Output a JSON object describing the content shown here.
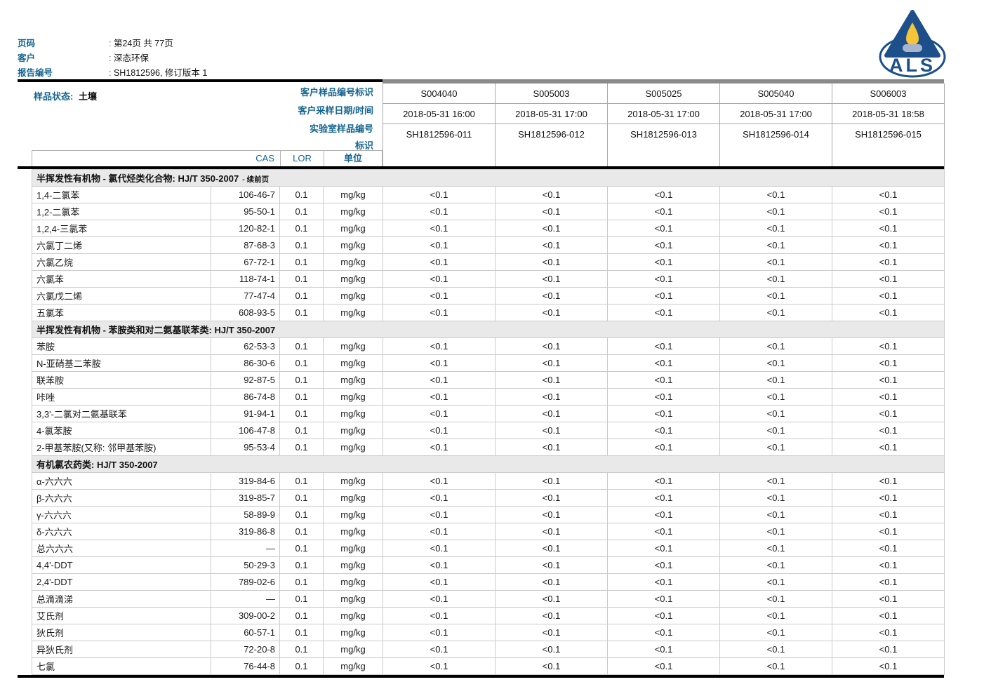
{
  "header": {
    "fields": [
      {
        "label": "页码",
        "value": "第24页 共 77页"
      },
      {
        "label": "客户",
        "value": "深态环保"
      },
      {
        "label": "报告编号",
        "value": "SH1812596, 修订版本 1"
      }
    ],
    "logo": {
      "text": "ALS",
      "triangle_color": "#1d4f8b",
      "flame_color": "#f6c437",
      "base_color": "#a7b4ce"
    }
  },
  "colors": {
    "label_blue": "#14648f",
    "section_bg": "#e9e9e9",
    "grid": "#cbcbcb"
  },
  "sample_info": {
    "status_label": "样品状态:",
    "status_value": "土壤",
    "row_labels": [
      "客户样品编号标识",
      "客户采样日期/时间",
      "实验室样品编号",
      "标识"
    ],
    "samples": [
      {
        "client_id": "S004040",
        "datetime": "2018-05-31 16:00",
        "lab_id": "SH1812596-011"
      },
      {
        "client_id": "S005003",
        "datetime": "2018-05-31 17:00",
        "lab_id": "SH1812596-012"
      },
      {
        "client_id": "S005025",
        "datetime": "2018-05-31 17:00",
        "lab_id": "SH1812596-013"
      },
      {
        "client_id": "S005040",
        "datetime": "2018-05-31 17:00",
        "lab_id": "SH1812596-014"
      },
      {
        "client_id": "S006003",
        "datetime": "2018-05-31 18:58",
        "lab_id": "SH1812596-015"
      }
    ]
  },
  "table": {
    "header": {
      "cas": "CAS",
      "lor": "LOR",
      "unit": "单位"
    },
    "sections": [
      {
        "title": "半挥发性有机物 - 氯代烃类化合物: HJ/T 350-2007",
        "suffix": "- 续前页",
        "rows": [
          {
            "name": "1,4-二氯苯",
            "cas": "106-46-7",
            "lor": "0.1",
            "unit": "mg/kg",
            "values": [
              "<0.1",
              "<0.1",
              "<0.1",
              "<0.1",
              "<0.1"
            ]
          },
          {
            "name": "1,2-二氯苯",
            "cas": "95-50-1",
            "lor": "0.1",
            "unit": "mg/kg",
            "values": [
              "<0.1",
              "<0.1",
              "<0.1",
              "<0.1",
              "<0.1"
            ]
          },
          {
            "name": "1,2,4-三氯苯",
            "cas": "120-82-1",
            "lor": "0.1",
            "unit": "mg/kg",
            "values": [
              "<0.1",
              "<0.1",
              "<0.1",
              "<0.1",
              "<0.1"
            ]
          },
          {
            "name": "六氯丁二烯",
            "cas": "87-68-3",
            "lor": "0.1",
            "unit": "mg/kg",
            "values": [
              "<0.1",
              "<0.1",
              "<0.1",
              "<0.1",
              "<0.1"
            ]
          },
          {
            "name": "六氯乙烷",
            "cas": "67-72-1",
            "lor": "0.1",
            "unit": "mg/kg",
            "values": [
              "<0.1",
              "<0.1",
              "<0.1",
              "<0.1",
              "<0.1"
            ]
          },
          {
            "name": "六氯苯",
            "cas": "118-74-1",
            "lor": "0.1",
            "unit": "mg/kg",
            "values": [
              "<0.1",
              "<0.1",
              "<0.1",
              "<0.1",
              "<0.1"
            ]
          },
          {
            "name": "六氯戊二烯",
            "cas": "77-47-4",
            "lor": "0.1",
            "unit": "mg/kg",
            "values": [
              "<0.1",
              "<0.1",
              "<0.1",
              "<0.1",
              "<0.1"
            ]
          },
          {
            "name": "五氯苯",
            "cas": "608-93-5",
            "lor": "0.1",
            "unit": "mg/kg",
            "values": [
              "<0.1",
              "<0.1",
              "<0.1",
              "<0.1",
              "<0.1"
            ]
          }
        ]
      },
      {
        "title": "半挥发性有机物 - 苯胺类和对二氨基联苯类: HJ/T 350-2007",
        "suffix": "",
        "rows": [
          {
            "name": "苯胺",
            "cas": "62-53-3",
            "lor": "0.1",
            "unit": "mg/kg",
            "values": [
              "<0.1",
              "<0.1",
              "<0.1",
              "<0.1",
              "<0.1"
            ]
          },
          {
            "name": "N-亚硝基二苯胺",
            "cas": "86-30-6",
            "lor": "0.1",
            "unit": "mg/kg",
            "values": [
              "<0.1",
              "<0.1",
              "<0.1",
              "<0.1",
              "<0.1"
            ]
          },
          {
            "name": "联苯胺",
            "cas": "92-87-5",
            "lor": "0.1",
            "unit": "mg/kg",
            "values": [
              "<0.1",
              "<0.1",
              "<0.1",
              "<0.1",
              "<0.1"
            ]
          },
          {
            "name": "咔唑",
            "cas": "86-74-8",
            "lor": "0.1",
            "unit": "mg/kg",
            "values": [
              "<0.1",
              "<0.1",
              "<0.1",
              "<0.1",
              "<0.1"
            ]
          },
          {
            "name": "3,3'-二氯对二氨基联苯",
            "cas": "91-94-1",
            "lor": "0.1",
            "unit": "mg/kg",
            "values": [
              "<0.1",
              "<0.1",
              "<0.1",
              "<0.1",
              "<0.1"
            ]
          },
          {
            "name": "4-氯苯胺",
            "cas": "106-47-8",
            "lor": "0.1",
            "unit": "mg/kg",
            "values": [
              "<0.1",
              "<0.1",
              "<0.1",
              "<0.1",
              "<0.1"
            ]
          },
          {
            "name": "2-甲基苯胺(又称: 邻甲基苯胺)",
            "cas": "95-53-4",
            "lor": "0.1",
            "unit": "mg/kg",
            "values": [
              "<0.1",
              "<0.1",
              "<0.1",
              "<0.1",
              "<0.1"
            ]
          }
        ]
      },
      {
        "title": "有机氯农药类: HJ/T 350-2007",
        "suffix": "",
        "rows": [
          {
            "name": "α-六六六",
            "cas": "319-84-6",
            "lor": "0.1",
            "unit": "mg/kg",
            "values": [
              "<0.1",
              "<0.1",
              "<0.1",
              "<0.1",
              "<0.1"
            ]
          },
          {
            "name": "β-六六六",
            "cas": "319-85-7",
            "lor": "0.1",
            "unit": "mg/kg",
            "values": [
              "<0.1",
              "<0.1",
              "<0.1",
              "<0.1",
              "<0.1"
            ]
          },
          {
            "name": "γ-六六六",
            "cas": "58-89-9",
            "lor": "0.1",
            "unit": "mg/kg",
            "values": [
              "<0.1",
              "<0.1",
              "<0.1",
              "<0.1",
              "<0.1"
            ]
          },
          {
            "name": "δ-六六六",
            "cas": "319-86-8",
            "lor": "0.1",
            "unit": "mg/kg",
            "values": [
              "<0.1",
              "<0.1",
              "<0.1",
              "<0.1",
              "<0.1"
            ]
          },
          {
            "name": "总六六六",
            "cas": "—",
            "lor": "0.1",
            "unit": "mg/kg",
            "values": [
              "<0.1",
              "<0.1",
              "<0.1",
              "<0.1",
              "<0.1"
            ]
          },
          {
            "name": "4,4'-DDT",
            "cas": "50-29-3",
            "lor": "0.1",
            "unit": "mg/kg",
            "values": [
              "<0.1",
              "<0.1",
              "<0.1",
              "<0.1",
              "<0.1"
            ]
          },
          {
            "name": "2,4'-DDT",
            "cas": "789-02-6",
            "lor": "0.1",
            "unit": "mg/kg",
            "values": [
              "<0.1",
              "<0.1",
              "<0.1",
              "<0.1",
              "<0.1"
            ]
          },
          {
            "name": "总滴滴涕",
            "cas": "—",
            "lor": "0.1",
            "unit": "mg/kg",
            "values": [
              "<0.1",
              "<0.1",
              "<0.1",
              "<0.1",
              "<0.1"
            ]
          },
          {
            "name": "艾氏剂",
            "cas": "309-00-2",
            "lor": "0.1",
            "unit": "mg/kg",
            "values": [
              "<0.1",
              "<0.1",
              "<0.1",
              "<0.1",
              "<0.1"
            ]
          },
          {
            "name": "狄氏剂",
            "cas": "60-57-1",
            "lor": "0.1",
            "unit": "mg/kg",
            "values": [
              "<0.1",
              "<0.1",
              "<0.1",
              "<0.1",
              "<0.1"
            ]
          },
          {
            "name": "异狄氏剂",
            "cas": "72-20-8",
            "lor": "0.1",
            "unit": "mg/kg",
            "values": [
              "<0.1",
              "<0.1",
              "<0.1",
              "<0.1",
              "<0.1"
            ]
          },
          {
            "name": "七氯",
            "cas": "76-44-8",
            "lor": "0.1",
            "unit": "mg/kg",
            "values": [
              "<0.1",
              "<0.1",
              "<0.1",
              "<0.1",
              "<0.1"
            ]
          }
        ]
      }
    ]
  }
}
